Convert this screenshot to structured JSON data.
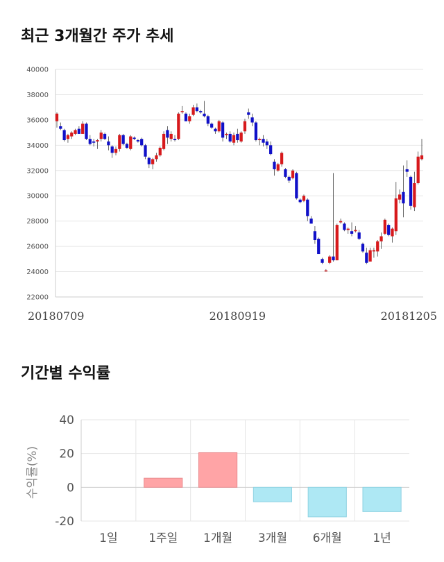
{
  "titles": {
    "trend": "최근 3개월간 주가 추세",
    "returns": "기간별 수익률"
  },
  "colors": {
    "up": "#d7191c",
    "down": "#1010c8",
    "wick": "#444444",
    "grid": "#e6e6e6",
    "bar_positive": "#ffa4a6",
    "bar_negative": "#aee8f4"
  },
  "chart_data": [
    {
      "type": "candlestick",
      "title": "",
      "xlabel": "",
      "ylabel": "",
      "ylim": [
        22000,
        40000
      ],
      "yticks": [
        22000,
        24000,
        26000,
        28000,
        30000,
        32000,
        34000,
        36000,
        38000,
        40000
      ],
      "xtick_labels": [
        {
          "index": 0,
          "label": "20180709"
        },
        {
          "index": 49,
          "label": "20180919"
        },
        {
          "index": 100,
          "label": "20181205"
        }
      ],
      "grid": true,
      "ohlc": [
        [
          35900,
          36600,
          35400,
          36500
        ],
        [
          35500,
          35800,
          35200,
          35300
        ],
        [
          35200,
          35300,
          34300,
          34400
        ],
        [
          34500,
          34900,
          34200,
          34800
        ],
        [
          34700,
          35100,
          34500,
          35000
        ],
        [
          34900,
          35300,
          34800,
          35200
        ],
        [
          35300,
          35500,
          34900,
          34900
        ],
        [
          34900,
          35900,
          34900,
          35700
        ],
        [
          35700,
          35800,
          34400,
          34500
        ],
        [
          34500,
          34800,
          34000,
          34100
        ],
        [
          34300,
          34500,
          33900,
          34200
        ],
        [
          34300,
          34500,
          33700,
          34400
        ],
        [
          34500,
          35200,
          34300,
          35000
        ],
        [
          34900,
          35000,
          34400,
          34500
        ],
        [
          34300,
          34700,
          33600,
          34000
        ],
        [
          33900,
          34000,
          33000,
          33400
        ],
        [
          33400,
          33900,
          33200,
          33700
        ],
        [
          33700,
          34900,
          33500,
          34800
        ],
        [
          34800,
          34900,
          34000,
          34100
        ],
        [
          34100,
          34200,
          33700,
          33800
        ],
        [
          33700,
          34800,
          33600,
          34700
        ],
        [
          34600,
          34700,
          34400,
          34500
        ],
        [
          34400,
          34500,
          34200,
          34300
        ],
        [
          34500,
          34600,
          33900,
          34000
        ],
        [
          34000,
          34100,
          32900,
          33100
        ],
        [
          33000,
          33100,
          32200,
          32500
        ],
        [
          32500,
          33000,
          32100,
          32900
        ],
        [
          32900,
          33400,
          32700,
          33200
        ],
        [
          33200,
          33900,
          33100,
          33800
        ],
        [
          33700,
          35100,
          33600,
          34900
        ],
        [
          35200,
          35500,
          34100,
          34600
        ],
        [
          34500,
          35100,
          34300,
          34900
        ],
        [
          34500,
          34800,
          34300,
          34400
        ],
        [
          34500,
          36600,
          34400,
          36500
        ],
        [
          36700,
          37100,
          36500,
          36700
        ],
        [
          36500,
          36600,
          35900,
          35900
        ],
        [
          35900,
          36500,
          35700,
          36300
        ],
        [
          36400,
          37200,
          36300,
          37000
        ],
        [
          37000,
          37300,
          36600,
          36700
        ],
        [
          36700,
          36800,
          36500,
          36600
        ],
        [
          36500,
          37500,
          36200,
          36300
        ],
        [
          36300,
          36400,
          35500,
          35700
        ],
        [
          35700,
          35800,
          35300,
          35400
        ],
        [
          35300,
          35400,
          34900,
          35100
        ],
        [
          35100,
          36000,
          35000,
          35900
        ],
        [
          35800,
          35900,
          34300,
          34600
        ],
        [
          34800,
          35000,
          34500,
          34900
        ],
        [
          34900,
          35100,
          34200,
          34300
        ],
        [
          34200,
          35000,
          34000,
          34800
        ],
        [
          34900,
          35300,
          34200,
          34400
        ],
        [
          34300,
          35100,
          34200,
          35000
        ],
        [
          35100,
          36100,
          34900,
          35900
        ],
        [
          36600,
          36900,
          36100,
          36400
        ],
        [
          36200,
          36500,
          35500,
          35800
        ],
        [
          35800,
          35900,
          34300,
          34400
        ],
        [
          34400,
          34600,
          34000,
          34500
        ],
        [
          34500,
          34800,
          33900,
          34200
        ],
        [
          34300,
          34500,
          33700,
          34000
        ],
        [
          34000,
          34300,
          33200,
          33300
        ],
        [
          32700,
          32900,
          31600,
          32100
        ],
        [
          32000,
          32600,
          31900,
          32500
        ],
        [
          32500,
          33500,
          32300,
          33400
        ],
        [
          32100,
          32200,
          31400,
          31500
        ],
        [
          31500,
          31600,
          31000,
          31200
        ],
        [
          31400,
          32100,
          31300,
          32000
        ],
        [
          31800,
          31900,
          29700,
          29800
        ],
        [
          29700,
          29800,
          29400,
          29500
        ],
        [
          29600,
          30100,
          29500,
          30000
        ],
        [
          29700,
          29800,
          28000,
          28400
        ],
        [
          28200,
          28400,
          27800,
          27800
        ],
        [
          27200,
          27600,
          26200,
          26500
        ],
        [
          26600,
          26700,
          25400,
          25400
        ],
        [
          25000,
          25100,
          24600,
          24700
        ],
        [
          24100,
          24200,
          24000,
          24100
        ],
        [
          24700,
          25300,
          24600,
          25200
        ],
        [
          25200,
          31800,
          24800,
          24900
        ],
        [
          24900,
          27800,
          24900,
          27700
        ],
        [
          27900,
          28200,
          27800,
          28000
        ],
        [
          27800,
          27900,
          27200,
          27300
        ],
        [
          27300,
          27500,
          27000,
          27400
        ],
        [
          27200,
          27900,
          26800,
          27000
        ],
        [
          27200,
          27600,
          27100,
          27300
        ],
        [
          27100,
          27300,
          26500,
          26600
        ],
        [
          26200,
          26300,
          25500,
          25600
        ],
        [
          25500,
          25900,
          24600,
          24700
        ],
        [
          24800,
          25900,
          24800,
          25700
        ],
        [
          25600,
          25900,
          25100,
          25700
        ],
        [
          25600,
          26500,
          25200,
          26400
        ],
        [
          26400,
          27100,
          25800,
          26800
        ],
        [
          27000,
          28200,
          26900,
          28100
        ],
        [
          27700,
          27800,
          26800,
          26900
        ],
        [
          26800,
          27500,
          26300,
          27400
        ],
        [
          27200,
          31100,
          26900,
          29800
        ],
        [
          29700,
          30500,
          29400,
          30100
        ],
        [
          30300,
          32400,
          28300,
          29400
        ],
        [
          32100,
          32800,
          31500,
          31900
        ],
        [
          31500,
          31600,
          28900,
          29200
        ],
        [
          29100,
          31900,
          28800,
          31000
        ],
        [
          31000,
          33500,
          30900,
          33100
        ],
        [
          32900,
          34500,
          32800,
          33200
        ]
      ]
    },
    {
      "type": "bar",
      "title": "",
      "xlabel": "",
      "ylabel": "수익률(%)",
      "ylim": [
        -20,
        40
      ],
      "yticks": [
        -20,
        0,
        20,
        40
      ],
      "categories": [
        "1일",
        "1주일",
        "1개월",
        "3개월",
        "6개월",
        "1년"
      ],
      "values": [
        0,
        5.4,
        20.5,
        -8.6,
        -17.5,
        -14.4
      ],
      "grid": true
    }
  ]
}
